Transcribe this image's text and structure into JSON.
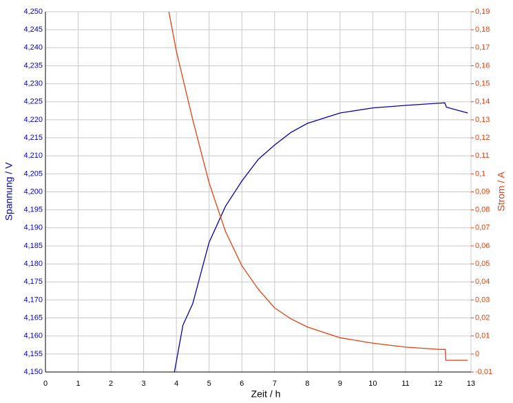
{
  "chart_data": {
    "type": "line",
    "xlabel": "Zeit / h",
    "ylabel": "Spannung / V",
    "y2label": "Strom / A",
    "xlim": [
      0,
      13
    ],
    "xticks": [
      0,
      1,
      2,
      3,
      4,
      5,
      6,
      7,
      8,
      9,
      10,
      11,
      12,
      13
    ],
    "ylim": [
      4.15,
      4.25
    ],
    "yticks": [
      {
        "value": 4.15,
        "label": "4,150"
      },
      {
        "value": 4.155,
        "label": "4,155"
      },
      {
        "value": 4.16,
        "label": "4,160"
      },
      {
        "value": 4.165,
        "label": "4,165"
      },
      {
        "value": 4.17,
        "label": "4,170"
      },
      {
        "value": 4.175,
        "label": "4,175"
      },
      {
        "value": 4.18,
        "label": "4,180"
      },
      {
        "value": 4.185,
        "label": "4,185"
      },
      {
        "value": 4.19,
        "label": "4,190"
      },
      {
        "value": 4.195,
        "label": "4,195"
      },
      {
        "value": 4.2,
        "label": "4,200"
      },
      {
        "value": 4.205,
        "label": "4,205"
      },
      {
        "value": 4.21,
        "label": "4,210"
      },
      {
        "value": 4.215,
        "label": "4,215"
      },
      {
        "value": 4.22,
        "label": "4,220"
      },
      {
        "value": 4.225,
        "label": "4,225"
      },
      {
        "value": 4.23,
        "label": "4,230"
      },
      {
        "value": 4.235,
        "label": "4,235"
      },
      {
        "value": 4.24,
        "label": "4,240"
      },
      {
        "value": 4.245,
        "label": "4,245"
      },
      {
        "value": 4.25,
        "label": "4,250"
      }
    ],
    "y2lim": [
      -0.01,
      0.19
    ],
    "y2ticks": [
      {
        "value": -0.01,
        "label": "-0,01"
      },
      0,
      {
        "value": 0.01,
        "label": "0,01"
      },
      {
        "value": 0.02,
        "label": "0,02"
      },
      {
        "value": 0.03,
        "label": "0,03"
      },
      {
        "value": 0.04,
        "label": "0,04"
      },
      {
        "value": 0.05,
        "label": "0,05"
      },
      {
        "value": 0.06,
        "label": "0,06"
      },
      {
        "value": 0.07,
        "label": "0,07"
      },
      {
        "value": 0.08,
        "label": "0,08"
      },
      {
        "value": 0.09,
        "label": "0,09"
      },
      {
        "value": 0.1,
        "label": "0,1"
      },
      {
        "value": 0.11,
        "label": "0,11"
      },
      {
        "value": 0.12,
        "label": "0,12"
      },
      {
        "value": 0.13,
        "label": "0,13"
      },
      {
        "value": 0.14,
        "label": "0,14"
      },
      {
        "value": 0.15,
        "label": "0,15"
      },
      {
        "value": 0.16,
        "label": "0,16"
      },
      {
        "value": 0.17,
        "label": "0,17"
      },
      {
        "value": 0.18,
        "label": "0,18"
      },
      {
        "value": 0.19,
        "label": "0,19"
      }
    ],
    "grid": true,
    "series": [
      {
        "color": "#0000b0",
        "axis": "y",
        "x": [
          3.94,
          4.2,
          4.5,
          5,
          5.5,
          6,
          6.5,
          7,
          7.5,
          8,
          9,
          10,
          11,
          12,
          12.2,
          12.25,
          12.9
        ],
        "values": [
          4.15,
          4.163,
          4.169,
          4.186,
          4.196,
          4.203,
          4.209,
          4.213,
          4.2165,
          4.219,
          4.2219,
          4.2233,
          4.224,
          4.2246,
          4.2247,
          4.2235,
          4.2219
        ]
      },
      {
        "color": "#e04010",
        "axis": "y2",
        "x": [
          3.77,
          4,
          4.5,
          5,
          5.5,
          6,
          6.5,
          7,
          7.5,
          8,
          9,
          10,
          11,
          12,
          12.22,
          12.23,
          12.9
        ],
        "values": [
          0.19,
          0.168,
          0.13,
          0.095,
          0.068,
          0.049,
          0.036,
          0.0256,
          0.0195,
          0.015,
          0.009,
          0.006,
          0.0038,
          0.0026,
          0.0025,
          -0.0035,
          -0.0035
        ]
      }
    ]
  }
}
